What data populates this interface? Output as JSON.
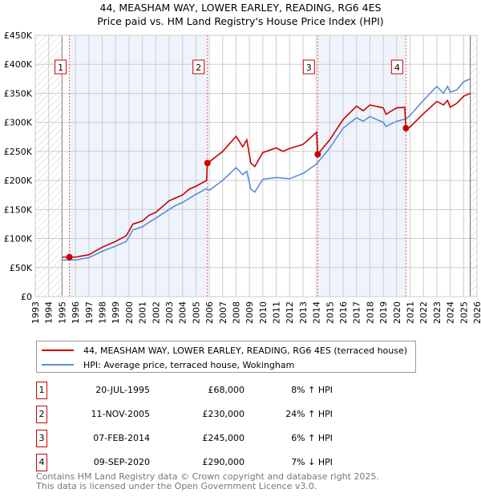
{
  "title": "44, MEASHAM WAY, LOWER EARLEY, READING, RG6 4ES",
  "subtitle": "Price paid vs. HM Land Registry's House Price Index (HPI)",
  "colors": {
    "property": "#cc0000",
    "hpi": "#5b8fd6",
    "shade": "#eef3fc"
  },
  "chart_data": {
    "type": "line",
    "xlim": [
      1993,
      2026
    ],
    "ylim": [
      0,
      450000
    ],
    "x_ticks": [
      "1993",
      "1994",
      "1995",
      "1996",
      "1997",
      "1998",
      "1999",
      "2000",
      "2001",
      "2002",
      "2003",
      "2004",
      "2005",
      "2006",
      "2007",
      "2008",
      "2009",
      "2010",
      "2011",
      "2012",
      "2013",
      "2014",
      "2015",
      "2016",
      "2017",
      "2018",
      "2019",
      "2020",
      "2021",
      "2022",
      "2023",
      "2024",
      "2025",
      "2026"
    ],
    "y_ticks": [
      {
        "v": 0,
        "label": "£0"
      },
      {
        "v": 50000,
        "label": "£50K"
      },
      {
        "v": 100000,
        "label": "£100K"
      },
      {
        "v": 150000,
        "label": "£150K"
      },
      {
        "v": 200000,
        "label": "£200K"
      },
      {
        "v": 250000,
        "label": "£250K"
      },
      {
        "v": 300000,
        "label": "£300K"
      },
      {
        "v": 350000,
        "label": "£350K"
      },
      {
        "v": 400000,
        "label": "£400K"
      },
      {
        "v": 450000,
        "label": "£450K"
      }
    ],
    "series": [
      {
        "name": "44, MEASHAM WAY, LOWER EARLEY, READING, RG6 4ES (terraced house)",
        "color": "#cc0000",
        "points": [
          [
            1995,
            68
          ],
          [
            1996,
            68
          ],
          [
            1997,
            72
          ],
          [
            1998,
            85
          ],
          [
            1999,
            95
          ],
          [
            1999.8,
            105
          ],
          [
            2000.3,
            125
          ],
          [
            2001,
            130
          ],
          [
            2001.5,
            140
          ],
          [
            2002,
            145
          ],
          [
            2003,
            165
          ],
          [
            2004,
            175
          ],
          [
            2004.5,
            185
          ],
          [
            2005,
            190
          ],
          [
            2005.8,
            200
          ],
          [
            2005.86,
            230
          ],
          [
            2006,
            232
          ],
          [
            2007,
            250
          ],
          [
            2008,
            276
          ],
          [
            2008.5,
            258
          ],
          [
            2008.8,
            270
          ],
          [
            2009.1,
            230
          ],
          [
            2009.4,
            224
          ],
          [
            2010,
            248
          ],
          [
            2011,
            256
          ],
          [
            2011.5,
            250
          ],
          [
            2012,
            255
          ],
          [
            2013,
            262
          ],
          [
            2014.02,
            283
          ],
          [
            2014.1,
            245
          ],
          [
            2015,
            270
          ],
          [
            2016,
            305
          ],
          [
            2017,
            328
          ],
          [
            2017.5,
            320
          ],
          [
            2018,
            330
          ],
          [
            2019,
            325
          ],
          [
            2019.2,
            314
          ],
          [
            2020,
            325
          ],
          [
            2020.6,
            326
          ],
          [
            2020.69,
            290
          ],
          [
            2021,
            292
          ],
          [
            2022,
            315
          ],
          [
            2023,
            336
          ],
          [
            2023.5,
            330
          ],
          [
            2023.8,
            338
          ],
          [
            2024,
            326
          ],
          [
            2024.5,
            333
          ],
          [
            2025,
            345
          ],
          [
            2025.5,
            350
          ]
        ]
      },
      {
        "name": "HPI: Average price, terraced house, Wokingham",
        "color": "#5b8fd6",
        "points": [
          [
            1995,
            63
          ],
          [
            1996,
            63
          ],
          [
            1997,
            67
          ],
          [
            1998,
            78
          ],
          [
            1999,
            87
          ],
          [
            1999.8,
            95
          ],
          [
            2000.3,
            115
          ],
          [
            2001,
            120
          ],
          [
            2001.5,
            128
          ],
          [
            2002,
            135
          ],
          [
            2003,
            150
          ],
          [
            2003.5,
            157
          ],
          [
            2004,
            162
          ],
          [
            2005,
            176
          ],
          [
            2005.8,
            186
          ],
          [
            2006,
            183
          ],
          [
            2007,
            200
          ],
          [
            2008,
            222
          ],
          [
            2008.5,
            210
          ],
          [
            2008.8,
            216
          ],
          [
            2009.1,
            185
          ],
          [
            2009.4,
            180
          ],
          [
            2010,
            202
          ],
          [
            2011,
            205
          ],
          [
            2012,
            203
          ],
          [
            2013,
            212
          ],
          [
            2014,
            228
          ],
          [
            2015,
            256
          ],
          [
            2016,
            290
          ],
          [
            2017,
            308
          ],
          [
            2017.5,
            302
          ],
          [
            2018,
            310
          ],
          [
            2019,
            300
          ],
          [
            2019.2,
            293
          ],
          [
            2020,
            302
          ],
          [
            2020.7,
            306
          ],
          [
            2021,
            312
          ],
          [
            2022,
            338
          ],
          [
            2023,
            362
          ],
          [
            2023.5,
            350
          ],
          [
            2023.8,
            362
          ],
          [
            2024,
            352
          ],
          [
            2024.5,
            356
          ],
          [
            2025,
            370
          ],
          [
            2025.5,
            375
          ]
        ]
      }
    ],
    "sales": [
      {
        "n": "1",
        "x": 1995.55,
        "y": 68
      },
      {
        "n": "2",
        "x": 2005.86,
        "y": 230
      },
      {
        "n": "3",
        "x": 2014.1,
        "y": 245
      },
      {
        "n": "4",
        "x": 2020.69,
        "y": 290
      }
    ]
  },
  "legend": {
    "property": "44, MEASHAM WAY, LOWER EARLEY, READING, RG6 4ES (terraced house)",
    "hpi": "HPI: Average price, terraced house, Wokingham"
  },
  "transactions": [
    {
      "n": "1",
      "date": "20-JUL-1995",
      "price": "£68,000",
      "diff": "8% ↑ HPI"
    },
    {
      "n": "2",
      "date": "11-NOV-2005",
      "price": "£230,000",
      "diff": "24% ↑ HPI"
    },
    {
      "n": "3",
      "date": "07-FEB-2014",
      "price": "£245,000",
      "diff": "6% ↑ HPI"
    },
    {
      "n": "4",
      "date": "09-SEP-2020",
      "price": "£290,000",
      "diff": "7% ↓ HPI"
    }
  ],
  "footer": {
    "line1": "Contains HM Land Registry data © Crown copyright and database right 2025.",
    "line2": "This data is licensed under the Open Government Licence v3.0."
  }
}
